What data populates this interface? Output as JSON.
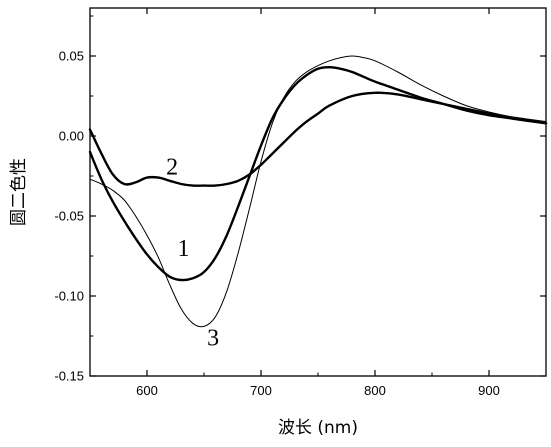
{
  "chart_data": {
    "type": "line",
    "title": "",
    "xlabel": "波长 (nm)",
    "ylabel": "圆二色性",
    "xlim": [
      550,
      950
    ],
    "ylim": [
      -0.15,
      0.08
    ],
    "x_ticks": [
      {
        "value": 600,
        "label": "600"
      },
      {
        "value": 700,
        "label": "700"
      },
      {
        "value": 800,
        "label": "800"
      },
      {
        "value": 900,
        "label": "900"
      }
    ],
    "y_ticks": [
      {
        "value": 0.05,
        "label": "0.05"
      },
      {
        "value": 0.0,
        "label": "0.00"
      },
      {
        "value": -0.05,
        "label": "-0.05"
      },
      {
        "value": -0.1,
        "label": "-0.10"
      },
      {
        "value": -0.15,
        "label": "-0.15"
      }
    ],
    "grid": false,
    "legend": "none",
    "series": [
      {
        "id": "1",
        "label": "1",
        "color": "#000000",
        "x": [
          550,
          560,
          570,
          580,
          590,
          600,
          610,
          620,
          630,
          640,
          650,
          660,
          670,
          680,
          690,
          700,
          710,
          720,
          730,
          740,
          750,
          760,
          770,
          780,
          790,
          800,
          820,
          840,
          860,
          880,
          900,
          920,
          950
        ],
        "y": [
          -0.01,
          -0.027,
          -0.041,
          -0.053,
          -0.064,
          -0.074,
          -0.082,
          -0.088,
          -0.09,
          -0.089,
          -0.085,
          -0.076,
          -0.062,
          -0.044,
          -0.025,
          -0.006,
          0.011,
          0.023,
          0.032,
          0.038,
          0.042,
          0.043,
          0.042,
          0.04,
          0.037,
          0.034,
          0.029,
          0.024,
          0.02,
          0.016,
          0.013,
          0.011,
          0.008
        ],
        "label_at": {
          "x": 632,
          "y": -0.07
        }
      },
      {
        "id": "2",
        "label": "2",
        "color": "#000000",
        "x": [
          550,
          560,
          570,
          580,
          590,
          600,
          610,
          620,
          630,
          640,
          650,
          660,
          670,
          680,
          690,
          700,
          710,
          720,
          730,
          740,
          750,
          760,
          780,
          800,
          820,
          840,
          860,
          880,
          900,
          920,
          950
        ],
        "y": [
          0.004,
          -0.011,
          -0.024,
          -0.03,
          -0.029,
          -0.026,
          -0.026,
          -0.028,
          -0.03,
          -0.031,
          -0.031,
          -0.031,
          -0.03,
          -0.028,
          -0.024,
          -0.018,
          -0.011,
          -0.004,
          0.003,
          0.009,
          0.014,
          0.019,
          0.025,
          0.027,
          0.026,
          0.023,
          0.02,
          0.017,
          0.014,
          0.011,
          0.008
        ],
        "label_at": {
          "x": 622,
          "y": -0.019
        }
      },
      {
        "id": "3",
        "label": "3",
        "color": "#000000",
        "x": [
          550,
          560,
          570,
          580,
          590,
          600,
          610,
          620,
          630,
          640,
          650,
          660,
          670,
          680,
          690,
          700,
          710,
          720,
          730,
          740,
          750,
          760,
          770,
          780,
          790,
          800,
          820,
          840,
          860,
          880,
          900,
          920,
          950
        ],
        "y": [
          -0.027,
          -0.03,
          -0.034,
          -0.04,
          -0.05,
          -0.062,
          -0.076,
          -0.093,
          -0.108,
          -0.117,
          -0.119,
          -0.113,
          -0.097,
          -0.073,
          -0.045,
          -0.016,
          0.008,
          0.024,
          0.034,
          0.04,
          0.044,
          0.047,
          0.049,
          0.05,
          0.049,
          0.047,
          0.04,
          0.032,
          0.025,
          0.019,
          0.015,
          0.012,
          0.009
        ],
        "label_at": {
          "x": 658,
          "y": -0.126
        }
      }
    ]
  }
}
